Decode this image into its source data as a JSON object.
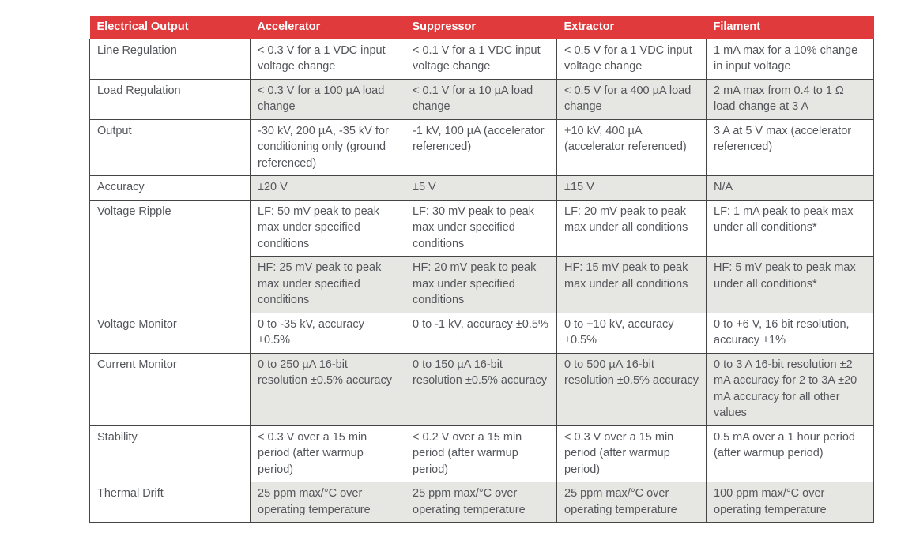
{
  "colors": {
    "header_bg": "#E13A3C",
    "header_text": "#FFFFFF",
    "row_bg": "#FFFFFF",
    "stripe_bg": "#E6E6E3",
    "border": "#454545",
    "text": "#54565B"
  },
  "table": {
    "headers": [
      "Electrical Output",
      "Accelerator",
      "Suppressor",
      "Extractor",
      "Filament"
    ],
    "rows": [
      {
        "label": "Line Regulation",
        "subrows": [
          [
            "< 0.3 V for a 1 VDC input voltage change",
            "< 0.1 V for a 1 VDC input voltage change",
            "< 0.5 V for a 1 VDC input voltage change",
            "1 mA max for a 10% change in input voltage"
          ]
        ]
      },
      {
        "label": "Load Regulation",
        "subrows": [
          [
            "< 0.3 V for a 100 µA load change",
            "< 0.1 V for a 10 µA load change",
            "< 0.5 V for a 400 µA load change",
            "2 mA max from 0.4 to 1 Ω load change at 3 A"
          ]
        ]
      },
      {
        "label": "Output",
        "subrows": [
          [
            "-30 kV, 200 µA, -35 kV for conditioning only (ground referenced)",
            "-1 kV, 100 µA (accelerator referenced)",
            "+10 kV, 400 µA (accelerator referenced)",
            "3 A at 5 V max (accelerator referenced)"
          ]
        ]
      },
      {
        "label": "Accuracy",
        "subrows": [
          [
            "±20 V",
            "±5 V",
            "±15 V",
            "N/A"
          ]
        ]
      },
      {
        "label": "Voltage Ripple",
        "subrows": [
          [
            "LF: 50 mV peak to peak max under specified conditions",
            "LF: 30 mV peak to peak max under specified conditions",
            "LF: 20 mV peak to peak max under all conditions",
            "LF: 1 mA peak to peak max under all conditions*"
          ],
          [
            "HF: 25 mV peak to peak max under specified conditions",
            "HF: 20 mV peak to peak max under specified conditions",
            "HF: 15 mV peak to peak max under all conditions",
            "HF: 5 mV peak to peak max under all conditions*"
          ]
        ]
      },
      {
        "label": "Voltage Monitor",
        "subrows": [
          [
            "0 to -35 kV, accuracy ±0.5%",
            "0 to -1 kV, accuracy ±0.5%",
            "0 to +10 kV, accuracy ±0.5%",
            "0 to +6 V, 16 bit resolution, accuracy ±1%"
          ]
        ]
      },
      {
        "label": "Current Monitor",
        "subrows": [
          [
            "0 to 250 µA 16-bit resolution ±0.5% accuracy",
            "0 to 150 µA 16-bit resolution ±0.5% accuracy",
            "0 to 500 µA 16-bit resolution ±0.5% accuracy",
            "0 to 3 A 16-bit resolution ±2 mA accuracy for 2 to 3A ±20 mA accuracy for all other values"
          ]
        ]
      },
      {
        "label": "Stability",
        "subrows": [
          [
            "< 0.3 V over a 15 min period (after warmup period)",
            "< 0.2 V over a 15 min period (after warmup period)",
            "< 0.3 V over a 15 min period (after warmup period)",
            "0.5 mA over a 1 hour period (after warmup period)"
          ]
        ]
      },
      {
        "label": "Thermal Drift",
        "subrows": [
          [
            "25 ppm max/°C over operating temperature",
            "25 ppm max/°C over operating temperature",
            "25 ppm max/°C over operating temperature",
            "100 ppm max/°C over operating temperature"
          ]
        ]
      }
    ]
  }
}
